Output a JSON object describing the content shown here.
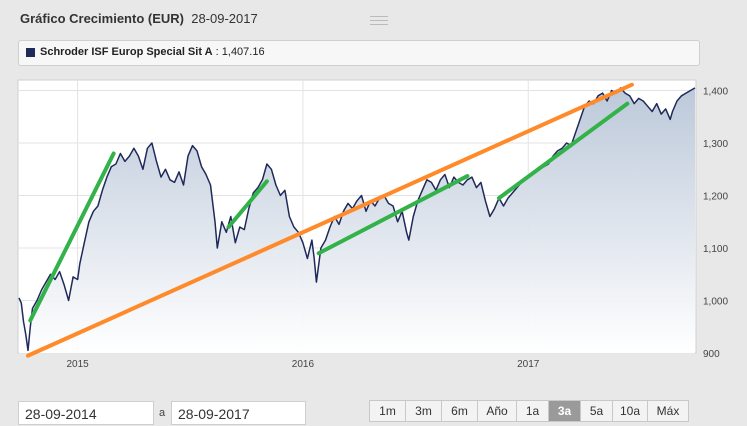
{
  "header": {
    "title": "Gráfico Crecimiento (EUR)",
    "date": "28-09-2017"
  },
  "legend": {
    "series_name": "Schroder ISF Europ Special Sit A",
    "separator": ":",
    "last_value": "1,407.16",
    "swatch_color": "#1f2a5a"
  },
  "controls": {
    "date_from": "28-09-2014",
    "date_to": "28-09-2017",
    "separator": "a",
    "ranges": [
      {
        "label": "1m",
        "active": false
      },
      {
        "label": "3m",
        "active": false
      },
      {
        "label": "6m",
        "active": false
      },
      {
        "label": "Año",
        "active": false
      },
      {
        "label": "1a",
        "active": false
      },
      {
        "label": "3a",
        "active": true
      },
      {
        "label": "5a",
        "active": false
      },
      {
        "label": "10a",
        "active": false
      },
      {
        "label": "Máx",
        "active": false
      }
    ]
  },
  "chart_data": {
    "type": "area",
    "y_ticks": [
      "1,400",
      "1,300",
      "1,200",
      "1,100",
      "1,000",
      "900"
    ],
    "y_tick_values": [
      1400,
      1300,
      1200,
      1100,
      1000,
      900
    ],
    "ylim": [
      900,
      1420
    ],
    "x_ticks": [
      "2015",
      "2016",
      "2017"
    ],
    "x_tick_values": [
      2015.0,
      2016.0,
      2017.0
    ],
    "xlim": [
      2014.74,
      2017.74
    ],
    "line_color": "#1f2a5a",
    "fill_top_color": "#b9c6d8",
    "grid": true,
    "series": [
      {
        "values": [
          [
            2014.74,
            1005
          ],
          [
            2014.75,
            995
          ],
          [
            2014.76,
            960
          ],
          [
            2014.77,
            935
          ],
          [
            2014.78,
            905
          ],
          [
            2014.79,
            950
          ],
          [
            2014.8,
            985
          ],
          [
            2014.82,
            1000
          ],
          [
            2014.84,
            1020
          ],
          [
            2014.86,
            1035
          ],
          [
            2014.88,
            1050
          ],
          [
            2014.9,
            1040
          ],
          [
            2014.92,
            1055
          ],
          [
            2014.94,
            1030
          ],
          [
            2014.96,
            1000
          ],
          [
            2014.98,
            1045
          ],
          [
            2015.0,
            1040
          ],
          [
            2015.01,
            1070
          ],
          [
            2015.03,
            1110
          ],
          [
            2015.05,
            1150
          ],
          [
            2015.07,
            1170
          ],
          [
            2015.09,
            1180
          ],
          [
            2015.11,
            1210
          ],
          [
            2015.13,
            1235
          ],
          [
            2015.15,
            1255
          ],
          [
            2015.17,
            1260
          ],
          [
            2015.19,
            1280
          ],
          [
            2015.21,
            1265
          ],
          [
            2015.23,
            1275
          ],
          [
            2015.25,
            1290
          ],
          [
            2015.27,
            1275
          ],
          [
            2015.29,
            1250
          ],
          [
            2015.31,
            1290
          ],
          [
            2015.33,
            1300
          ],
          [
            2015.35,
            1265
          ],
          [
            2015.37,
            1235
          ],
          [
            2015.39,
            1250
          ],
          [
            2015.41,
            1230
          ],
          [
            2015.43,
            1225
          ],
          [
            2015.45,
            1245
          ],
          [
            2015.47,
            1220
          ],
          [
            2015.49,
            1275
          ],
          [
            2015.51,
            1295
          ],
          [
            2015.53,
            1285
          ],
          [
            2015.55,
            1255
          ],
          [
            2015.57,
            1240
          ],
          [
            2015.59,
            1220
          ],
          [
            2015.61,
            1150
          ],
          [
            2015.62,
            1100
          ],
          [
            2015.64,
            1150
          ],
          [
            2015.66,
            1130
          ],
          [
            2015.68,
            1160
          ],
          [
            2015.7,
            1110
          ],
          [
            2015.72,
            1140
          ],
          [
            2015.74,
            1135
          ],
          [
            2015.76,
            1175
          ],
          [
            2015.78,
            1205
          ],
          [
            2015.8,
            1215
          ],
          [
            2015.82,
            1230
          ],
          [
            2015.84,
            1260
          ],
          [
            2015.86,
            1250
          ],
          [
            2015.88,
            1220
          ],
          [
            2015.9,
            1200
          ],
          [
            2015.92,
            1210
          ],
          [
            2015.94,
            1160
          ],
          [
            2015.96,
            1140
          ],
          [
            2015.98,
            1130
          ],
          [
            2016.0,
            1110
          ],
          [
            2016.02,
            1080
          ],
          [
            2016.04,
            1115
          ],
          [
            2016.05,
            1080
          ],
          [
            2016.06,
            1035
          ],
          [
            2016.08,
            1100
          ],
          [
            2016.1,
            1115
          ],
          [
            2016.12,
            1140
          ],
          [
            2016.14,
            1160
          ],
          [
            2016.16,
            1145
          ],
          [
            2016.18,
            1170
          ],
          [
            2016.2,
            1185
          ],
          [
            2016.22,
            1175
          ],
          [
            2016.24,
            1190
          ],
          [
            2016.26,
            1200
          ],
          [
            2016.28,
            1170
          ],
          [
            2016.3,
            1190
          ],
          [
            2016.32,
            1180
          ],
          [
            2016.34,
            1195
          ],
          [
            2016.36,
            1200
          ],
          [
            2016.38,
            1185
          ],
          [
            2016.4,
            1180
          ],
          [
            2016.42,
            1150
          ],
          [
            2016.44,
            1170
          ],
          [
            2016.46,
            1130
          ],
          [
            2016.47,
            1115
          ],
          [
            2016.49,
            1160
          ],
          [
            2016.51,
            1190
          ],
          [
            2016.53,
            1210
          ],
          [
            2016.55,
            1230
          ],
          [
            2016.57,
            1225
          ],
          [
            2016.59,
            1210
          ],
          [
            2016.61,
            1230
          ],
          [
            2016.63,
            1240
          ],
          [
            2016.65,
            1215
          ],
          [
            2016.67,
            1235
          ],
          [
            2016.69,
            1225
          ],
          [
            2016.71,
            1220
          ],
          [
            2016.73,
            1230
          ],
          [
            2016.75,
            1235
          ],
          [
            2016.77,
            1215
          ],
          [
            2016.79,
            1225
          ],
          [
            2016.81,
            1190
          ],
          [
            2016.83,
            1160
          ],
          [
            2016.85,
            1175
          ],
          [
            2016.87,
            1195
          ],
          [
            2016.89,
            1180
          ],
          [
            2016.91,
            1195
          ],
          [
            2016.93,
            1205
          ],
          [
            2016.95,
            1215
          ],
          [
            2016.97,
            1225
          ],
          [
            2016.99,
            1235
          ],
          [
            2017.01,
            1240
          ],
          [
            2017.03,
            1245
          ],
          [
            2017.05,
            1250
          ],
          [
            2017.07,
            1255
          ],
          [
            2017.09,
            1260
          ],
          [
            2017.11,
            1275
          ],
          [
            2017.13,
            1285
          ],
          [
            2017.15,
            1290
          ],
          [
            2017.17,
            1300
          ],
          [
            2017.19,
            1295
          ],
          [
            2017.21,
            1320
          ],
          [
            2017.23,
            1345
          ],
          [
            2017.25,
            1370
          ],
          [
            2017.27,
            1380
          ],
          [
            2017.29,
            1375
          ],
          [
            2017.31,
            1390
          ],
          [
            2017.33,
            1395
          ],
          [
            2017.35,
            1380
          ],
          [
            2017.37,
            1400
          ],
          [
            2017.39,
            1395
          ],
          [
            2017.41,
            1405
          ],
          [
            2017.43,
            1395
          ],
          [
            2017.45,
            1390
          ],
          [
            2017.47,
            1375
          ],
          [
            2017.49,
            1385
          ],
          [
            2017.51,
            1380
          ],
          [
            2017.53,
            1370
          ],
          [
            2017.55,
            1360
          ],
          [
            2017.57,
            1375
          ],
          [
            2017.59,
            1355
          ],
          [
            2017.61,
            1365
          ],
          [
            2017.63,
            1345
          ],
          [
            2017.64,
            1360
          ],
          [
            2017.66,
            1380
          ],
          [
            2017.68,
            1390
          ],
          [
            2017.7,
            1395
          ],
          [
            2017.72,
            1400
          ],
          [
            2017.74,
            1405
          ]
        ]
      }
    ],
    "annotations": [
      {
        "kind": "trendline",
        "color": "#ff8a2a",
        "from": [
          2014.78,
          895
        ],
        "to": [
          2017.46,
          1411
        ]
      },
      {
        "kind": "trendline",
        "color": "#33b24a",
        "from": [
          2014.79,
          962
        ],
        "to": [
          2015.16,
          1280
        ]
      },
      {
        "kind": "trendline",
        "color": "#33b24a",
        "from": [
          2015.67,
          1140
        ],
        "to": [
          2015.84,
          1227
        ]
      },
      {
        "kind": "trendline",
        "color": "#33b24a",
        "from": [
          2016.07,
          1090
        ],
        "to": [
          2016.73,
          1237
        ]
      },
      {
        "kind": "trendline",
        "color": "#33b24a",
        "from": [
          2016.87,
          1195
        ],
        "to": [
          2017.44,
          1375
        ]
      }
    ]
  }
}
